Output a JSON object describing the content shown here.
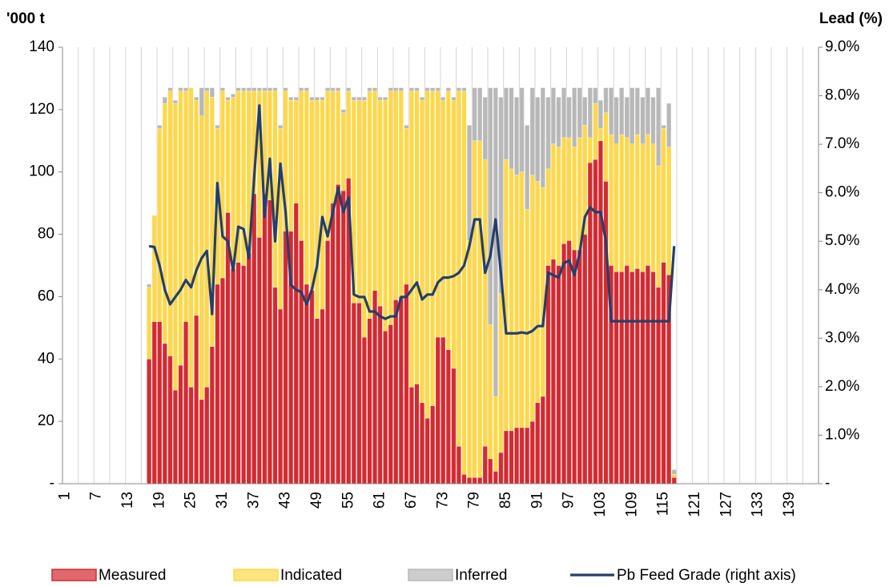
{
  "chart_data": {
    "type": "bar",
    "stacked": true,
    "ylabel": "'000 t",
    "y2label": "Lead (%)",
    "categories": [
      "1",
      null,
      null,
      null,
      null,
      null,
      "7",
      null,
      null,
      null,
      null,
      null,
      "13",
      null,
      null,
      null,
      null,
      null,
      "19",
      null,
      null,
      null,
      null,
      null,
      "25",
      null,
      null,
      null,
      null,
      null,
      "31",
      null,
      null,
      null,
      null,
      null,
      "37",
      null,
      null,
      null,
      null,
      null,
      "43",
      null,
      null,
      null,
      null,
      null,
      "49",
      null,
      null,
      null,
      null,
      null,
      "55",
      null,
      null,
      null,
      null,
      null,
      "61",
      null,
      null,
      null,
      null,
      null,
      "67",
      null,
      null,
      null,
      null,
      null,
      "73",
      null,
      null,
      null,
      null,
      null,
      "79",
      null,
      null,
      null,
      null,
      null,
      "85",
      null,
      null,
      null,
      null,
      null,
      "91",
      null,
      null,
      null,
      null,
      null,
      "97",
      null,
      null,
      null,
      null,
      null,
      "103",
      null,
      null,
      null,
      null,
      null,
      "109",
      null,
      null,
      null,
      null,
      null,
      "115",
      null,
      null,
      null,
      null,
      null,
      "121",
      null,
      null,
      null,
      null,
      null,
      "127",
      null,
      null,
      null,
      null,
      null,
      "133",
      null,
      null,
      null,
      null,
      null,
      "139",
      null,
      null,
      null,
      null,
      null
    ],
    "ylim": [
      0,
      140
    ],
    "yticks": [
      {
        "value": 0,
        "label": "-"
      },
      20,
      40,
      60,
      80,
      100,
      120,
      140
    ],
    "y2lim": [
      0,
      9
    ],
    "y2ticks": [
      {
        "value": 0,
        "label": "-"
      },
      {
        "value": 1,
        "label": "1.0%"
      },
      {
        "value": 2,
        "label": "2.0%"
      },
      {
        "value": 3,
        "label": "3.0%"
      },
      {
        "value": 4,
        "label": "4.0%"
      },
      {
        "value": 5,
        "label": "5.0%"
      },
      {
        "value": 6,
        "label": "6.0%"
      },
      {
        "value": 7,
        "label": "7.0%"
      },
      {
        "value": 8,
        "label": "8.0%"
      },
      {
        "value": 9,
        "label": "9.0%"
      }
    ],
    "grid": true,
    "legend": "bottom",
    "series": [
      {
        "name": "Measured",
        "color": "#d42a31",
        "values": [
          null,
          null,
          null,
          null,
          null,
          null,
          null,
          null,
          null,
          null,
          null,
          null,
          null,
          null,
          null,
          null,
          40,
          52,
          52,
          45,
          41,
          30,
          38,
          52,
          31,
          54,
          27,
          31,
          44,
          64,
          66,
          87,
          69,
          71,
          70,
          74,
          93,
          79,
          93,
          91,
          63,
          56,
          81,
          81,
          90,
          78,
          64,
          62,
          53,
          56,
          78,
          90,
          96,
          94,
          98,
          58,
          58,
          47,
          53,
          62,
          57,
          49,
          51,
          59,
          60,
          64,
          31,
          32,
          26,
          21,
          25,
          47,
          47,
          43,
          37,
          12,
          3,
          2,
          2,
          2,
          12,
          8,
          4,
          10,
          17,
          17,
          18,
          18,
          18,
          20,
          26,
          28,
          70,
          72,
          70,
          77,
          78,
          75,
          75,
          80,
          103,
          104,
          110,
          97,
          70,
          68,
          68,
          70,
          68,
          69,
          68,
          70,
          68,
          63,
          71,
          67,
          2,
          null,
          null,
          null,
          null,
          null,
          null,
          null,
          null,
          null,
          null,
          null,
          null,
          null,
          null,
          null,
          null,
          null,
          null,
          null,
          null,
          null,
          null,
          null,
          null,
          null,
          null,
          null
        ]
      },
      {
        "name": "Indicated",
        "color": "#ffd84a",
        "values": [
          null,
          null,
          null,
          null,
          null,
          null,
          null,
          null,
          null,
          null,
          null,
          null,
          null,
          null,
          null,
          null,
          23,
          34,
          62,
          77,
          85,
          92,
          88,
          74,
          96,
          69,
          91,
          95,
          80,
          50,
          60,
          36,
          55,
          55,
          56,
          52,
          33,
          47,
          33,
          35,
          63,
          58,
          45,
          42,
          33,
          48,
          62,
          61,
          70,
          67,
          48,
          36,
          30,
          25,
          28,
          65,
          65,
          76,
          73,
          64,
          66,
          74,
          75,
          67,
          66,
          50,
          95,
          94,
          97,
          105,
          101,
          79,
          76,
          83,
          86,
          114,
          123,
          76,
          108,
          108,
          92,
          43,
          24,
          51,
          87,
          84,
          81,
          82,
          70,
          79,
          71,
          67,
          31,
          37,
          38,
          34,
          33,
          33,
          36,
          35,
          8,
          18,
          4,
          22,
          42,
          41,
          44,
          41,
          41,
          43,
          41,
          42,
          41,
          39,
          43,
          41,
          1,
          null,
          null,
          null,
          null,
          null,
          null,
          null,
          null,
          null,
          null,
          null,
          null,
          null,
          null,
          null,
          null,
          null,
          null,
          null,
          null,
          null,
          null,
          null,
          null,
          null,
          null,
          null
        ]
      },
      {
        "name": "Inferred",
        "color": "#b8b8b8",
        "values": [
          null,
          null,
          null,
          null,
          null,
          null,
          null,
          null,
          null,
          null,
          null,
          null,
          null,
          null,
          null,
          null,
          1,
          0,
          1,
          2,
          1,
          1,
          1,
          1,
          0,
          1,
          9,
          1,
          3,
          1,
          1,
          1,
          1,
          1,
          1,
          1,
          1,
          1,
          1,
          1,
          1,
          1,
          1,
          1,
          1,
          1,
          1,
          1,
          1,
          1,
          1,
          1,
          1,
          1,
          1,
          1,
          1,
          1,
          1,
          1,
          1,
          1,
          1,
          1,
          1,
          1,
          1,
          1,
          1,
          1,
          1,
          1,
          1,
          1,
          1,
          1,
          1,
          37,
          17,
          17,
          20,
          76,
          99,
          63,
          23,
          26,
          25,
          27,
          27,
          28,
          27,
          32,
          23,
          18,
          16,
          16,
          13,
          19,
          16,
          9,
          16,
          5,
          9,
          8,
          15,
          15,
          15,
          13,
          18,
          15,
          15,
          15,
          15,
          25,
          1,
          14,
          1.5,
          null,
          null,
          null,
          null,
          null,
          null,
          null,
          null,
          null,
          null,
          null,
          null,
          null,
          null,
          null,
          null,
          null,
          null,
          null,
          null,
          null,
          null,
          null,
          null,
          null,
          null,
          null
        ]
      },
      {
        "name": "Pb Feed Grade (right axis)",
        "color": "#243f6b",
        "type": "line",
        "axis": "y2",
        "values": [
          null,
          null,
          null,
          null,
          null,
          null,
          null,
          null,
          null,
          null,
          null,
          null,
          null,
          null,
          null,
          null,
          4.9,
          4.88,
          4.5,
          4.0,
          3.7,
          3.85,
          4.0,
          4.2,
          4.05,
          4.4,
          4.65,
          4.8,
          3.5,
          6.2,
          5.1,
          5.0,
          4.4,
          5.3,
          5.25,
          4.65,
          6.3,
          7.8,
          5.5,
          6.7,
          5.0,
          6.6,
          5.6,
          4.1,
          4.0,
          3.95,
          3.7,
          4.0,
          4.5,
          5.5,
          5.1,
          5.6,
          6.1,
          5.6,
          5.9,
          3.9,
          3.85,
          3.85,
          3.55,
          3.55,
          3.45,
          3.4,
          3.45,
          3.45,
          3.85,
          3.85,
          4.0,
          4.15,
          3.8,
          3.9,
          3.9,
          4.15,
          4.25,
          4.25,
          4.28,
          4.35,
          4.5,
          4.9,
          5.45,
          5.45,
          4.35,
          4.7,
          5.45,
          4.35,
          3.1,
          3.1,
          3.1,
          3.12,
          3.1,
          3.15,
          3.25,
          3.25,
          4.35,
          4.3,
          4.25,
          4.55,
          4.6,
          4.3,
          4.75,
          5.5,
          5.7,
          5.6,
          5.6,
          5.0,
          3.35,
          3.35,
          3.35,
          3.35,
          3.35,
          3.35,
          3.35,
          3.35,
          3.35,
          3.35,
          3.35,
          3.35,
          4.9,
          null,
          null,
          null,
          null,
          null,
          null,
          null,
          null,
          null,
          null,
          null,
          null,
          null,
          null,
          null,
          null,
          null,
          null,
          null,
          null,
          null,
          null,
          null,
          null,
          null,
          null,
          null
        ]
      }
    ]
  }
}
